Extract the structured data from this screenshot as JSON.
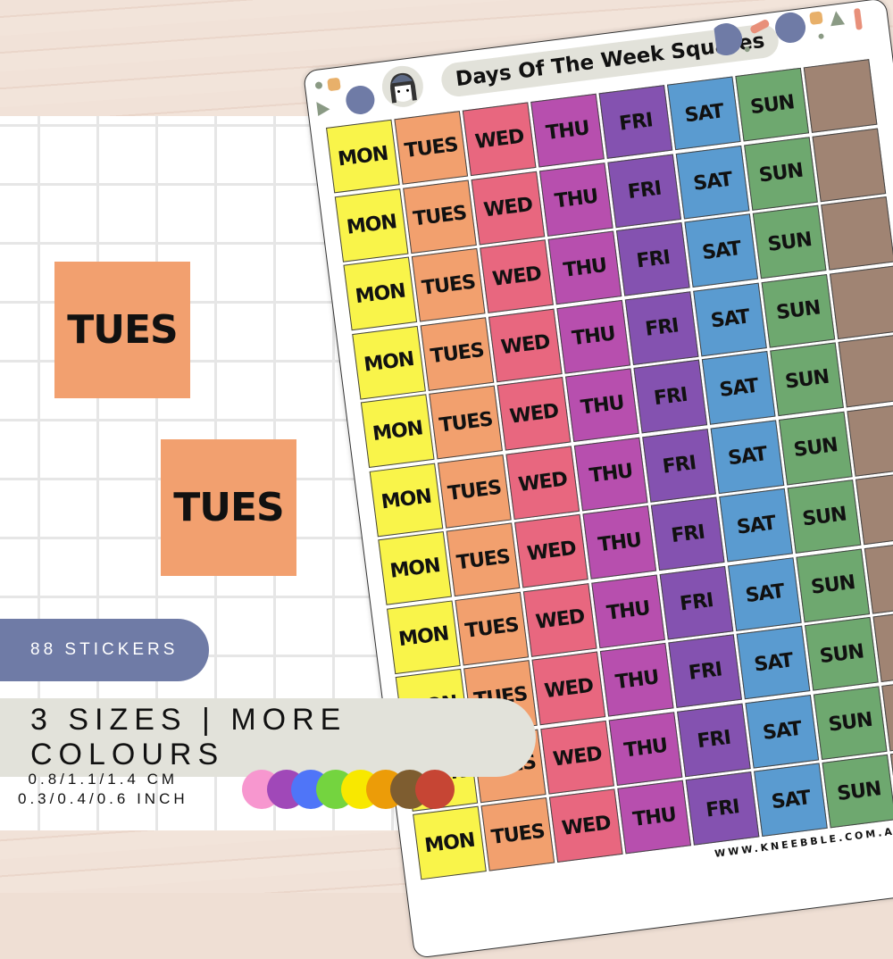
{
  "sheet": {
    "title": "Days Of The Week Squares",
    "website": "WWW.KNEEBBLE.COM.AU",
    "rows": 11,
    "columns": [
      {
        "label": "MON",
        "color": "#f9f44a"
      },
      {
        "label": "TUES",
        "color": "#f2a06e"
      },
      {
        "label": "WED",
        "color": "#e8677f"
      },
      {
        "label": "THU",
        "color": "#b74fae"
      },
      {
        "label": "FRI",
        "color": "#8452b0"
      },
      {
        "label": "SAT",
        "color": "#5a9bd0"
      },
      {
        "label": "SUN",
        "color": "#6ea86f"
      },
      {
        "label": "",
        "color": "#a08473"
      }
    ]
  },
  "samples": {
    "large": "TUES",
    "medium": "TUES"
  },
  "badge": "88 STICKERS",
  "banner": "3 SIZES | MORE COLOURS",
  "sizes": {
    "cm": "0.8/1.1/1.4  CM",
    "inch": "0.3/0.4/0.6 INCH"
  },
  "colour_options": [
    "#f797cf",
    "#a048b8",
    "#4f75f8",
    "#74d43f",
    "#f8e800",
    "#ec9c08",
    "#7e5d30",
    "#c64534"
  ]
}
